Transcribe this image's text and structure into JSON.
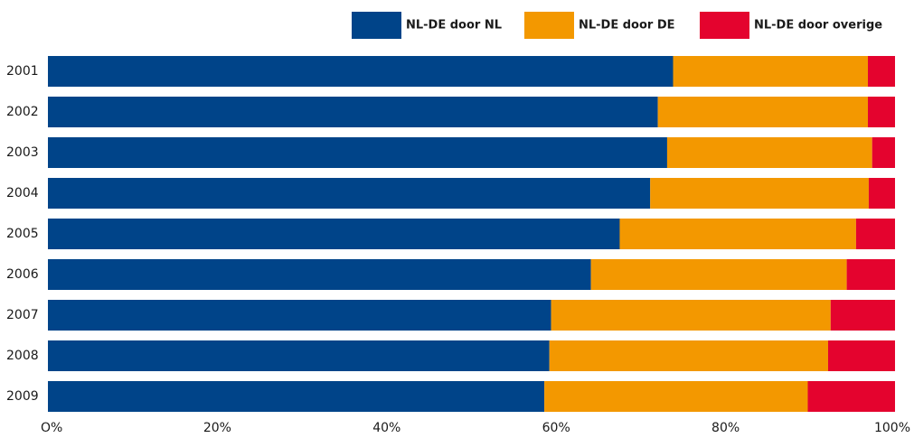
{
  "chart_data": {
    "type": "bar",
    "orientation": "horizontal",
    "stacked": "percent",
    "categories": [
      "2001",
      "2002",
      "2003",
      "2004",
      "2005",
      "2006",
      "2007",
      "2008",
      "2009"
    ],
    "series": [
      {
        "name": "NL-DE door NL",
        "color": "#004489",
        "values": [
          73.8,
          72.0,
          73.1,
          71.1,
          67.5,
          64.1,
          59.4,
          59.2,
          58.6
        ]
      },
      {
        "name": "NL-DE door DE",
        "color": "#f39800",
        "values": [
          23.0,
          24.8,
          24.2,
          25.8,
          27.9,
          30.2,
          33.0,
          32.9,
          31.1
        ]
      },
      {
        "name": "NL-DE door overige",
        "color": "#e4032e",
        "values": [
          3.2,
          3.2,
          2.7,
          3.1,
          4.6,
          5.7,
          7.6,
          7.9,
          10.3
        ]
      }
    ],
    "xlim": [
      0,
      100
    ],
    "xticks": [
      "O%",
      "20%",
      "40%",
      "60%",
      "80%",
      "100%"
    ],
    "grid": true,
    "legend": "top-right",
    "title": "",
    "xlabel": "",
    "ylabel": ""
  }
}
